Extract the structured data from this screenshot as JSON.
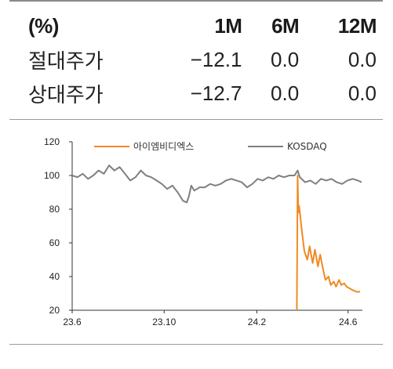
{
  "table": {
    "header": [
      "(%)",
      "1M",
      "6M",
      "12M"
    ],
    "rows": [
      {
        "label": "절대주가",
        "values": [
          "−12.1",
          "0.0",
          "0.0"
        ]
      },
      {
        "label": "상대주가",
        "values": [
          "−12.7",
          "0.0",
          "0.0"
        ]
      }
    ]
  },
  "chart_data": {
    "type": "line",
    "ylim": [
      20,
      120
    ],
    "yticks": [
      "20",
      "40",
      "60",
      "80",
      "100",
      "120"
    ],
    "xlim": [
      "2023-06-01",
      "2024-06-20"
    ],
    "xticks": [
      {
        "label": "23.6",
        "date": "2023-06-01"
      },
      {
        "label": "23.10",
        "date": "2023-10-01"
      },
      {
        "label": "24.2",
        "date": "2024-02-01"
      },
      {
        "label": "24.6",
        "date": "2024-06-01"
      }
    ],
    "legend_position": "top",
    "series": [
      {
        "name": "아이엠비디엑스",
        "color": "#f08a24",
        "points": [
          [
            "2024-03-25",
            20
          ],
          [
            "2024-03-26",
            100
          ],
          [
            "2024-03-27",
            78
          ],
          [
            "2024-03-28",
            82
          ],
          [
            "2024-04-01",
            66
          ],
          [
            "2024-04-04",
            55
          ],
          [
            "2024-04-08",
            50
          ],
          [
            "2024-04-11",
            58
          ],
          [
            "2024-04-15",
            48
          ],
          [
            "2024-04-18",
            56
          ],
          [
            "2024-04-22",
            46
          ],
          [
            "2024-04-25",
            53
          ],
          [
            "2024-04-29",
            44
          ],
          [
            "2024-05-02",
            38
          ],
          [
            "2024-05-06",
            40
          ],
          [
            "2024-05-09",
            35
          ],
          [
            "2024-05-13",
            37
          ],
          [
            "2024-05-16",
            34
          ],
          [
            "2024-05-20",
            38
          ],
          [
            "2024-05-23",
            35
          ],
          [
            "2024-05-27",
            36
          ],
          [
            "2024-05-30",
            34
          ],
          [
            "2024-06-03",
            33
          ],
          [
            "2024-06-07",
            32
          ],
          [
            "2024-06-12",
            31
          ],
          [
            "2024-06-17",
            31
          ]
        ]
      },
      {
        "name": "KOSDAQ",
        "color": "#7f7f7f",
        "points": [
          [
            "2023-06-01",
            100
          ],
          [
            "2023-06-08",
            99
          ],
          [
            "2023-06-15",
            101
          ],
          [
            "2023-06-22",
            98
          ],
          [
            "2023-06-29",
            100
          ],
          [
            "2023-07-06",
            103
          ],
          [
            "2023-07-13",
            101
          ],
          [
            "2023-07-20",
            106
          ],
          [
            "2023-07-27",
            103
          ],
          [
            "2023-08-03",
            105
          ],
          [
            "2023-08-10",
            101
          ],
          [
            "2023-08-17",
            97
          ],
          [
            "2023-08-24",
            99
          ],
          [
            "2023-08-31",
            103
          ],
          [
            "2023-09-07",
            100
          ],
          [
            "2023-09-14",
            99
          ],
          [
            "2023-09-21",
            97
          ],
          [
            "2023-09-28",
            95
          ],
          [
            "2023-10-05",
            92
          ],
          [
            "2023-10-12",
            94
          ],
          [
            "2023-10-19",
            90
          ],
          [
            "2023-10-26",
            85
          ],
          [
            "2023-10-31",
            84
          ],
          [
            "2023-11-03",
            88
          ],
          [
            "2023-11-06",
            94
          ],
          [
            "2023-11-10",
            91
          ],
          [
            "2023-11-17",
            93
          ],
          [
            "2023-11-24",
            93
          ],
          [
            "2023-12-01",
            95
          ],
          [
            "2023-12-08",
            94
          ],
          [
            "2023-12-15",
            95
          ],
          [
            "2023-12-22",
            97
          ],
          [
            "2023-12-29",
            98
          ],
          [
            "2024-01-05",
            97
          ],
          [
            "2024-01-12",
            96
          ],
          [
            "2024-01-19",
            93
          ],
          [
            "2024-01-26",
            95
          ],
          [
            "2024-02-02",
            98
          ],
          [
            "2024-02-09",
            97
          ],
          [
            "2024-02-16",
            99
          ],
          [
            "2024-02-23",
            98
          ],
          [
            "2024-03-01",
            100
          ],
          [
            "2024-03-08",
            99
          ],
          [
            "2024-03-15",
            100
          ],
          [
            "2024-03-22",
            100
          ],
          [
            "2024-03-26",
            103
          ],
          [
            "2024-03-29",
            99
          ],
          [
            "2024-04-05",
            96
          ],
          [
            "2024-04-12",
            97
          ],
          [
            "2024-04-19",
            95
          ],
          [
            "2024-04-26",
            98
          ],
          [
            "2024-05-03",
            97
          ],
          [
            "2024-05-10",
            98
          ],
          [
            "2024-05-17",
            96
          ],
          [
            "2024-05-24",
            95
          ],
          [
            "2024-05-31",
            97
          ],
          [
            "2024-06-07",
            98
          ],
          [
            "2024-06-14",
            97
          ],
          [
            "2024-06-19",
            96
          ]
        ]
      }
    ]
  }
}
